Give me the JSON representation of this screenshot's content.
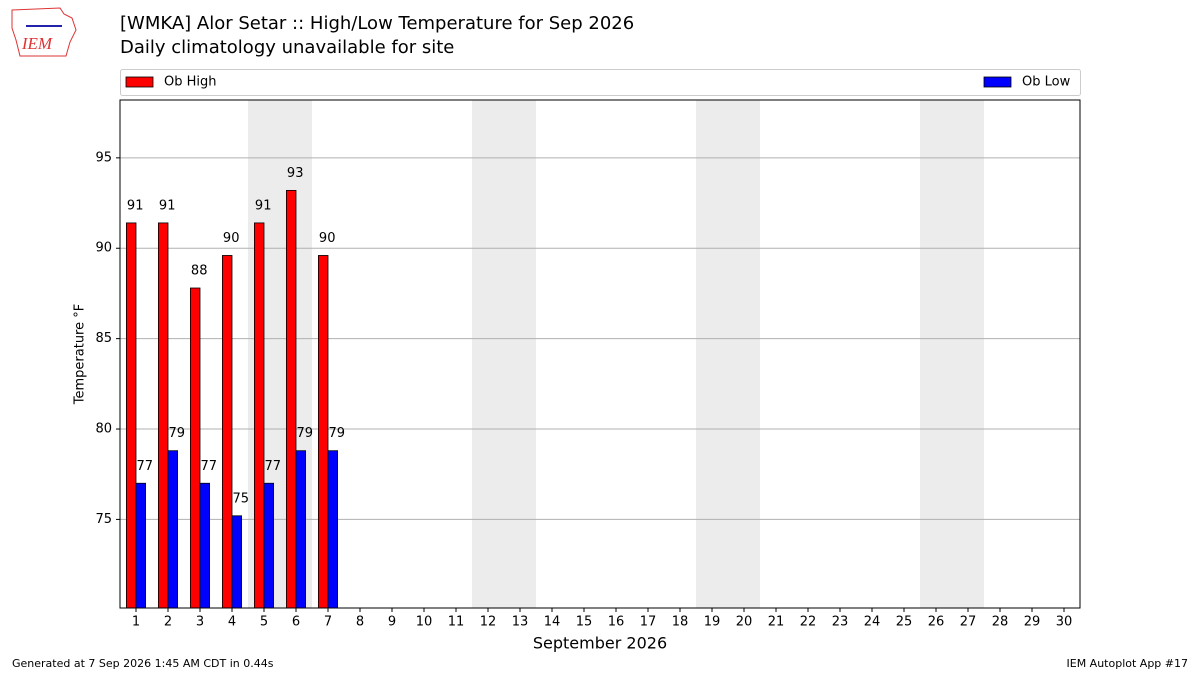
{
  "chart_data": {
    "type": "bar",
    "title": "[WMKA] Alor Setar :: High/Low Temperature for Sep 2026",
    "subtitle": "Daily climatology unavailable for site",
    "x": [
      1,
      2,
      3,
      4,
      5,
      6,
      7
    ],
    "series": [
      {
        "name": "Ob High",
        "color": "#ff0000",
        "values": [
          91.4,
          91.4,
          87.8,
          89.6,
          91.4,
          93.2,
          89.6
        ],
        "value_labels": [
          "91",
          "91",
          "88",
          "90",
          "91",
          "93",
          "90"
        ]
      },
      {
        "name": "Ob Low",
        "color": "#0000ff",
        "values": [
          77.0,
          78.8,
          77.0,
          75.2,
          77.0,
          78.8,
          78.8
        ],
        "value_labels": [
          "77",
          "79",
          "77",
          "75",
          "77",
          "79",
          "79"
        ]
      }
    ],
    "xlim": [
      0.5,
      30.5
    ],
    "xticks": [
      1,
      2,
      3,
      4,
      5,
      6,
      7,
      8,
      9,
      10,
      11,
      12,
      13,
      14,
      15,
      16,
      17,
      18,
      19,
      20,
      21,
      22,
      23,
      24,
      25,
      26,
      27,
      28,
      29,
      30
    ],
    "ylim": [
      70.1,
      98.2
    ],
    "yticks": [
      75,
      80,
      85,
      90,
      95
    ],
    "xlabel": "September 2026",
    "ylabel": "Temperature °F",
    "grid": true,
    "legend": "top",
    "shaded_ranges": [
      [
        4.5,
        6.5
      ],
      [
        11.5,
        13.5
      ],
      [
        18.5,
        20.5
      ],
      [
        25.5,
        27.5
      ]
    ]
  },
  "logo": "IEM",
  "footer": {
    "left": "Generated at 7 Sep 2026 1:45 AM CDT in 0.44s",
    "right": "IEM Autoplot App #17"
  }
}
